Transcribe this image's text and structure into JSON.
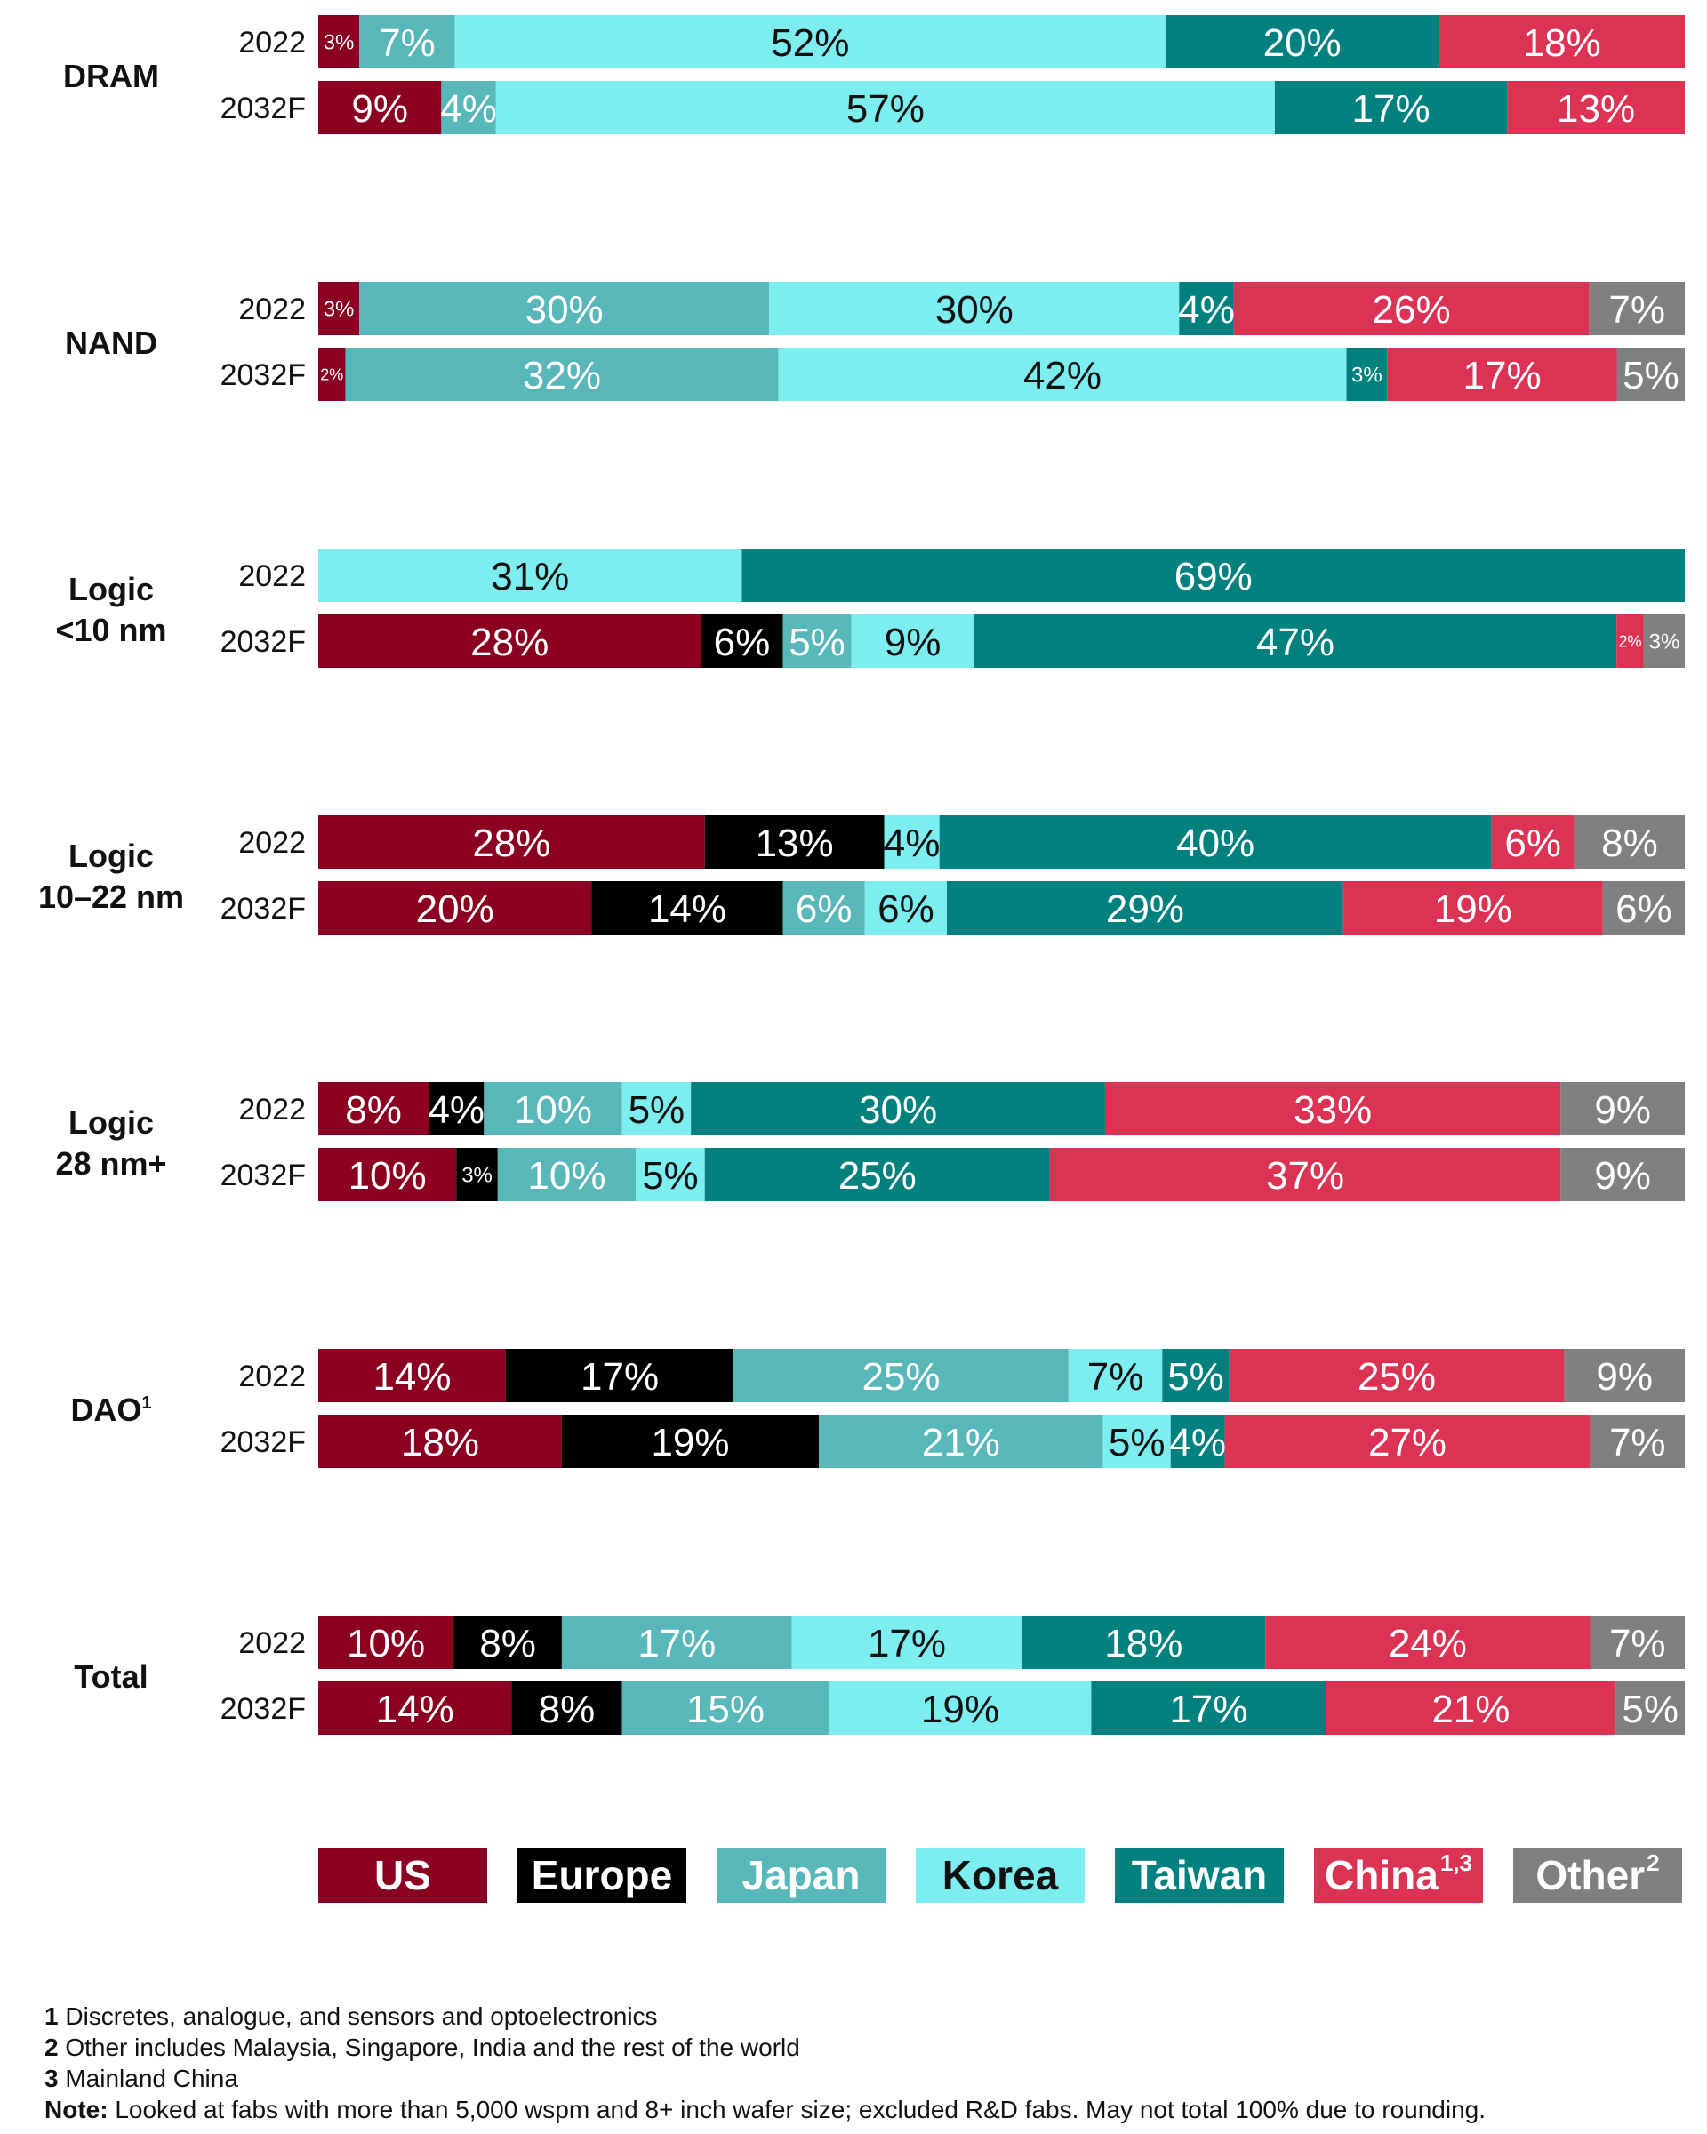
{
  "chart_data": {
    "type": "bar",
    "orientation": "horizontal",
    "stacked": true,
    "value_suffix": "%",
    "series": [
      {
        "name": "US",
        "color": "#8B0020",
        "text_color": "#ffffff"
      },
      {
        "name": "Europe",
        "color": "#000000",
        "text_color": "#ffffff"
      },
      {
        "name": "Japan",
        "color": "#57B7B9",
        "text_color": "#ffffff"
      },
      {
        "name": "Korea",
        "color": "#7DEEF0",
        "text_color": "#111111"
      },
      {
        "name": "Taiwan",
        "color": "#00817E",
        "text_color": "#ffffff"
      },
      {
        "name": "China",
        "color": "#DC3355",
        "text_color": "#ffffff",
        "sup": "1,3"
      },
      {
        "name": "Other",
        "color": "#808080",
        "text_color": "#ffffff",
        "sup": "2"
      }
    ],
    "groups": [
      {
        "label": "DRAM",
        "sup": "",
        "bars": [
          {
            "year": "2022",
            "values": [
              3,
              0,
              7,
              52,
              20,
              18,
              0
            ]
          },
          {
            "year": "2032F",
            "values": [
              9,
              0,
              4,
              57,
              17,
              13,
              0
            ]
          }
        ]
      },
      {
        "label": "NAND",
        "sup": "",
        "bars": [
          {
            "year": "2022",
            "values": [
              3,
              0,
              30,
              30,
              4,
              26,
              7
            ]
          },
          {
            "year": "2032F",
            "values": [
              2,
              0,
              32,
              42,
              3,
              17,
              5
            ]
          }
        ]
      },
      {
        "label": "Logic\n<10 nm",
        "sup": "",
        "bars": [
          {
            "year": "2022",
            "values": [
              0,
              0,
              0,
              31,
              69,
              0,
              0
            ]
          },
          {
            "year": "2032F",
            "values": [
              28,
              6,
              5,
              9,
              47,
              2,
              3
            ]
          }
        ]
      },
      {
        "label": "Logic\n10–22 nm",
        "sup": "",
        "bars": [
          {
            "year": "2022",
            "values": [
              28,
              13,
              0,
              4,
              40,
              6,
              8
            ]
          },
          {
            "year": "2032F",
            "values": [
              20,
              14,
              6,
              6,
              29,
              19,
              6
            ]
          }
        ]
      },
      {
        "label": "Logic\n28 nm+",
        "sup": "",
        "bars": [
          {
            "year": "2022",
            "values": [
              8,
              4,
              10,
              5,
              30,
              33,
              9
            ]
          },
          {
            "year": "2032F",
            "values": [
              10,
              3,
              10,
              5,
              25,
              37,
              9
            ]
          }
        ]
      },
      {
        "label": "DAO",
        "sup": "1",
        "bars": [
          {
            "year": "2022",
            "values": [
              14,
              17,
              25,
              7,
              5,
              25,
              9
            ]
          },
          {
            "year": "2032F",
            "values": [
              18,
              19,
              21,
              5,
              4,
              27,
              7
            ]
          }
        ]
      },
      {
        "label": "Total",
        "sup": "",
        "bars": [
          {
            "year": "2022",
            "values": [
              10,
              8,
              17,
              17,
              18,
              24,
              7
            ]
          },
          {
            "year": "2032F",
            "values": [
              14,
              8,
              15,
              19,
              17,
              21,
              5
            ]
          }
        ]
      }
    ],
    "legend_position": "bottom",
    "grid": false
  },
  "footnotes": [
    {
      "num": "1",
      "text": " Discretes, analogue, and sensors and optoelectronics"
    },
    {
      "num": "2",
      "text": " Other includes Malaysia, Singapore, India and the rest of the world"
    },
    {
      "num": "3",
      "text": " Mainland China"
    },
    {
      "num": "Note:",
      "text": " Looked at fabs with more than 5,000 wspm and 8+ inch wafer size; excluded R&D fabs. May not total 100% due to rounding."
    }
  ]
}
